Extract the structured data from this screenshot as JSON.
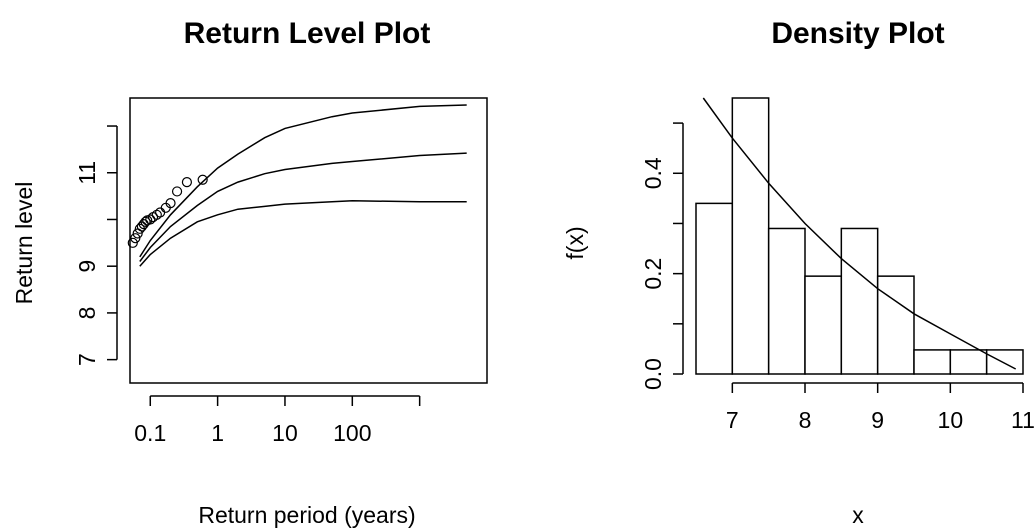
{
  "chart_data": [
    {
      "type": "line",
      "title": "Return Level Plot",
      "xlabel": "Return period (years)",
      "ylabel": "Return level",
      "x_scale": "log",
      "x_ticks": [
        0.1,
        1,
        10,
        100
      ],
      "x_tick_labels": [
        "0.1",
        "1",
        "10",
        "100"
      ],
      "y_ticks": [
        7,
        8,
        9,
        11
      ],
      "y_tick_labels": [
        "7",
        "8",
        "9",
        "11"
      ],
      "xlim": [
        0.05,
        10000
      ],
      "ylim": [
        6.5,
        12.6
      ],
      "grid": false,
      "series": [
        {
          "role": "upper",
          "x": [
            0.07,
            0.1,
            0.2,
            0.5,
            1,
            2,
            5,
            10,
            50,
            100,
            1000,
            5000
          ],
          "y": [
            9.2,
            9.55,
            10.1,
            10.7,
            11.1,
            11.4,
            11.75,
            11.95,
            12.2,
            12.28,
            12.42,
            12.45
          ]
        },
        {
          "role": "estimate",
          "x": [
            0.07,
            0.1,
            0.2,
            0.5,
            1,
            2,
            5,
            10,
            50,
            100,
            1000,
            5000
          ],
          "y": [
            9.1,
            9.4,
            9.85,
            10.3,
            10.6,
            10.8,
            10.98,
            11.07,
            11.2,
            11.24,
            11.37,
            11.42
          ]
        },
        {
          "role": "lower",
          "x": [
            0.07,
            0.1,
            0.2,
            0.5,
            1,
            2,
            5,
            10,
            50,
            100,
            1000,
            5000
          ],
          "y": [
            9.0,
            9.25,
            9.6,
            9.95,
            10.1,
            10.22,
            10.28,
            10.33,
            10.38,
            10.4,
            10.38,
            10.38
          ]
        }
      ],
      "points": {
        "x": [
          0.055,
          0.06,
          0.065,
          0.07,
          0.075,
          0.08,
          0.085,
          0.09,
          0.1,
          0.11,
          0.125,
          0.14,
          0.17,
          0.2,
          0.25,
          0.35,
          0.6
        ],
        "y": [
          9.5,
          9.6,
          9.7,
          9.8,
          9.85,
          9.9,
          9.95,
          9.98,
          10.0,
          10.05,
          10.1,
          10.15,
          10.25,
          10.35,
          10.6,
          10.8,
          10.85
        ]
      }
    },
    {
      "type": "bar",
      "title": "Density Plot",
      "xlabel": "x",
      "ylabel": "f(x)",
      "bins": [
        [
          6.5,
          7.0
        ],
        [
          7.0,
          7.5
        ],
        [
          7.5,
          8.0
        ],
        [
          8.0,
          8.5
        ],
        [
          8.5,
          9.0
        ],
        [
          9.0,
          9.5
        ],
        [
          9.5,
          10.0
        ],
        [
          10.0,
          10.5
        ],
        [
          10.5,
          11.0
        ]
      ],
      "values": [
        0.34,
        0.55,
        0.29,
        0.195,
        0.29,
        0.195,
        0.048,
        0.048,
        0.048
      ],
      "density_curve": {
        "x": [
          6.6,
          7.0,
          7.5,
          8.0,
          8.5,
          9.0,
          9.5,
          10.0,
          10.5,
          10.9
        ],
        "y": [
          0.55,
          0.47,
          0.38,
          0.3,
          0.23,
          0.17,
          0.12,
          0.08,
          0.04,
          0.01
        ]
      },
      "x_ticks": [
        7,
        8,
        9,
        10,
        11
      ],
      "x_tick_labels": [
        "7",
        "8",
        "9",
        "10",
        "11"
      ],
      "y_ticks": [
        0.0,
        0.2,
        0.4
      ],
      "y_tick_labels": [
        "0.0",
        "0.2",
        "0.4"
      ],
      "xlim": [
        6.5,
        11.0
      ],
      "ylim": [
        0,
        0.55
      ],
      "grid": false
    }
  ]
}
